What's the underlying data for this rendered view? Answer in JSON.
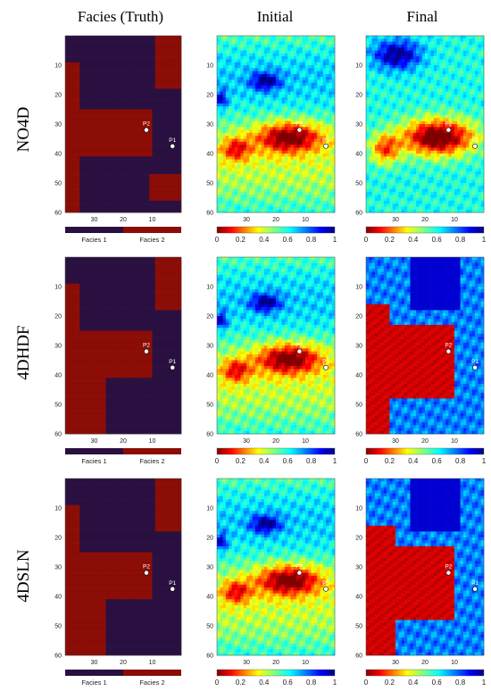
{
  "chart_data": {
    "type": "heatmap",
    "columns": [
      "Facies (Truth)",
      "Initial",
      "Final"
    ],
    "rows": [
      "NO4D",
      "4DHDF",
      "4DSLN"
    ],
    "y_axis": {
      "range": [
        0,
        60
      ],
      "ticks": [
        "10",
        "20",
        "30",
        "40",
        "50",
        "60"
      ],
      "reversed": true
    },
    "x_axis": {
      "ticks": [
        "30",
        "20",
        "10"
      ]
    },
    "colorbar": {
      "range": [
        0,
        1
      ],
      "ticks": [
        "0",
        "0.2",
        "0.4",
        "0.6",
        "0.8",
        "1"
      ],
      "colormap": "jet-reversed"
    },
    "facies_legend": [
      "Facies 1",
      "Facies 2"
    ],
    "facies_colors": {
      "Facies 1": "#2a1040",
      "Facies 2": "#8b0d06"
    },
    "wells": [
      {
        "name": "P1",
        "x": 3,
        "y": 37.5
      },
      {
        "name": "P2",
        "x": 12,
        "y": 32
      }
    ]
  },
  "labels": {
    "col_truth": "Facies (Truth)",
    "col_initial": "Initial",
    "col_final": "Final",
    "row_1": "NO4D",
    "row_2": "4DHDF",
    "row_3": "4DSLN",
    "facies_1": "Facies 1",
    "facies_2": "Facies 2",
    "well_p1": "P1",
    "well_p2": "P2"
  }
}
